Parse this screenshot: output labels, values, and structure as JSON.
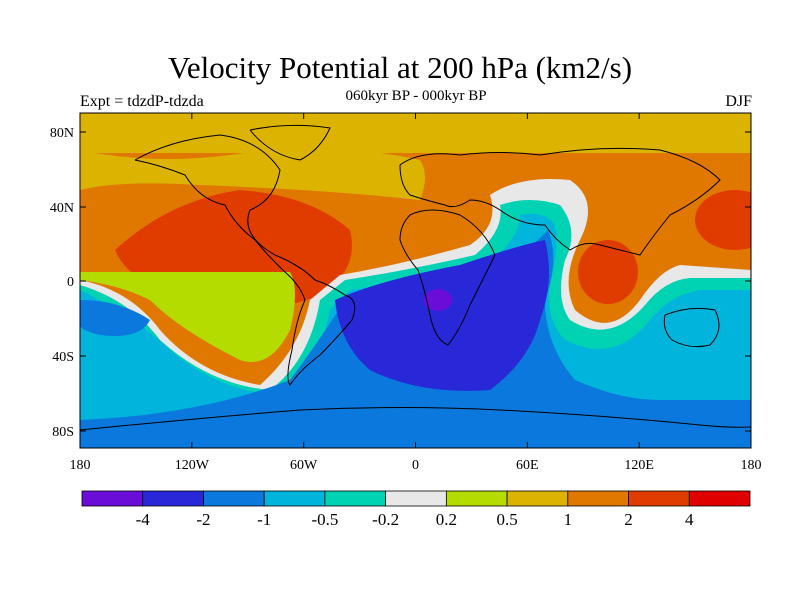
{
  "title": "Velocity Potential at 200 hPa (km2/s)",
  "left_label": "Expt = tdzdP-tdzda",
  "center_label": "060kyr BP - 000kyr BP",
  "right_label": "DJF",
  "axes": {
    "y_ticks": [
      "80N",
      "40N",
      "0",
      "40S",
      "80S"
    ],
    "x_ticks": [
      "180",
      "120W",
      "60W",
      "0",
      "60E",
      "120E",
      "180"
    ]
  },
  "colorbar": {
    "colors": [
      "#6a0dd8",
      "#2828d8",
      "#0a78dc",
      "#00b4dc",
      "#00d2b4",
      "#e8e8e8",
      "#b4dc00",
      "#dcb400",
      "#e07800",
      "#e03c00",
      "#e00000"
    ],
    "labels": [
      "-4",
      "-2",
      "-1",
      "-0.5",
      "-0.2",
      "0.2",
      "0.5",
      "1",
      "2",
      "4"
    ]
  }
}
